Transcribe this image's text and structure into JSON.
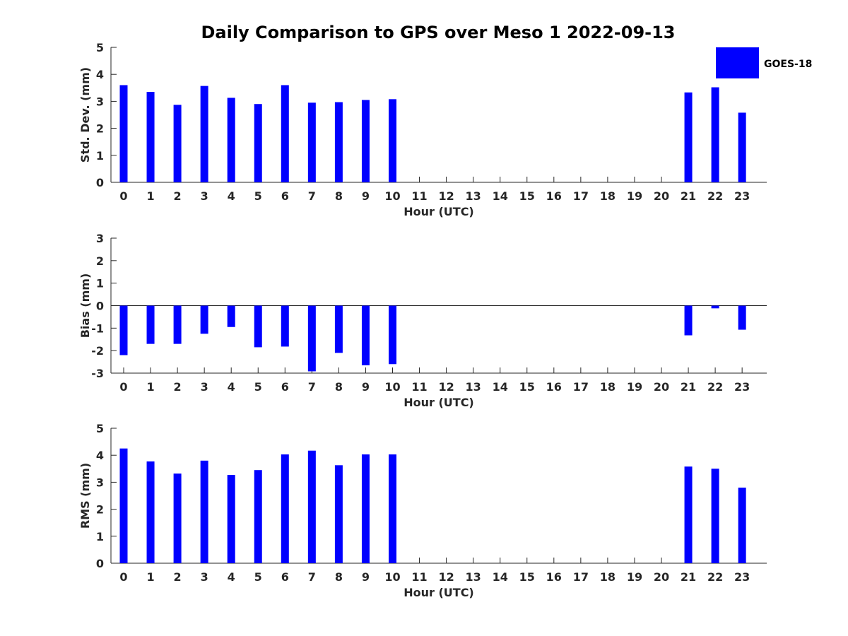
{
  "chart_data": {
    "type": "bar",
    "title": "Daily Comparison to GPS over Meso 1 2022-09-13",
    "bar_color": "#0000ff",
    "legend": {
      "label": "GOES-18",
      "position": "top-right",
      "color": "#0000ff"
    },
    "categories": [
      "0",
      "1",
      "2",
      "3",
      "4",
      "5",
      "6",
      "7",
      "8",
      "9",
      "10",
      "11",
      "12",
      "13",
      "14",
      "15",
      "16",
      "17",
      "18",
      "19",
      "20",
      "21",
      "22",
      "23"
    ],
    "panels": [
      {
        "key": "std",
        "ylabel": "Std. Dev. (mm)",
        "xlabel": "Hour (UTC)",
        "ylim": [
          0,
          5
        ],
        "yticks": [
          0,
          1,
          2,
          3,
          4,
          5
        ],
        "series": [
          {
            "name": "GOES-18",
            "values": [
              3.6,
              3.35,
              2.87,
              3.57,
              3.13,
              2.9,
              3.6,
              2.95,
              2.97,
              3.05,
              3.08,
              null,
              null,
              null,
              null,
              null,
              null,
              null,
              null,
              null,
              null,
              3.33,
              3.52,
              2.58
            ]
          }
        ]
      },
      {
        "key": "bias",
        "ylabel": "Bias (mm)",
        "xlabel": "Hour (UTC)",
        "ylim": [
          -3,
          3
        ],
        "yticks": [
          -3,
          -2,
          -1,
          0,
          1,
          2,
          3
        ],
        "zero_line": true,
        "series": [
          {
            "name": "GOES-18",
            "values": [
              -2.2,
              -1.7,
              -1.7,
              -1.25,
              -0.95,
              -1.85,
              -1.82,
              -2.92,
              -2.1,
              -2.65,
              -2.6,
              null,
              null,
              null,
              null,
              null,
              null,
              null,
              null,
              null,
              null,
              -1.32,
              -0.12,
              -1.07
            ]
          }
        ]
      },
      {
        "key": "rms",
        "ylabel": "RMS (mm)",
        "xlabel": "Hour (UTC)",
        "ylim": [
          0,
          5
        ],
        "yticks": [
          0,
          1,
          2,
          3,
          4,
          5
        ],
        "series": [
          {
            "name": "GOES-18",
            "values": [
              4.25,
              3.77,
              3.32,
              3.8,
              3.27,
              3.45,
              4.03,
              4.17,
              3.63,
              4.03,
              4.03,
              null,
              null,
              null,
              null,
              null,
              null,
              null,
              null,
              null,
              null,
              3.58,
              3.5,
              2.8
            ]
          }
        ]
      }
    ]
  }
}
